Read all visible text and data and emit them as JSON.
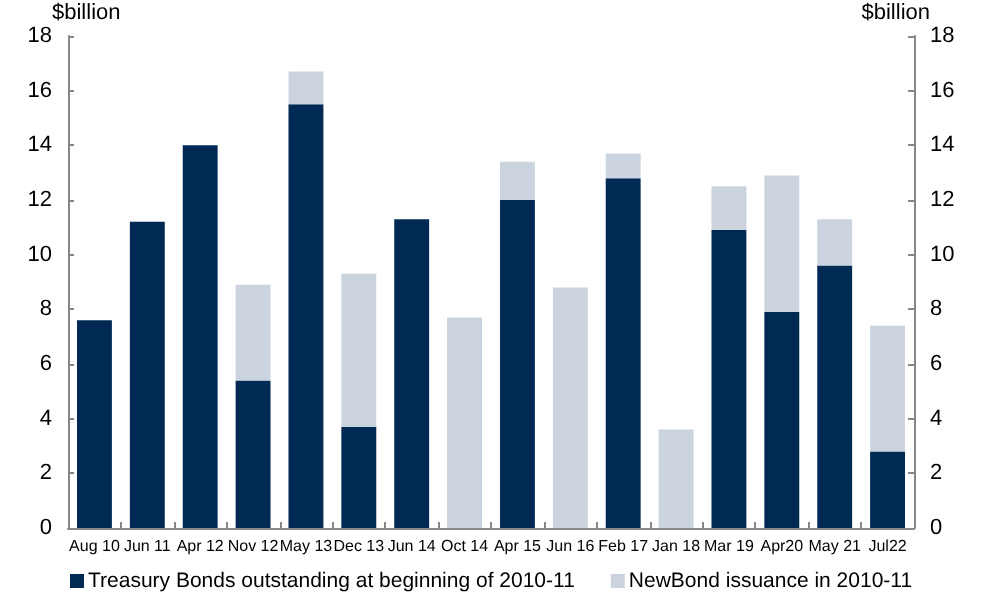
{
  "chart_data": {
    "type": "bar",
    "stacked": true,
    "ylabel": "$billion",
    "y2label": "$billion",
    "categories": [
      "Aug 10",
      "Jun 11",
      "Apr 12",
      "Nov 12",
      "May 13",
      "Dec 13",
      "Jun 14",
      "Oct 14",
      "Apr 15",
      "Jun 16",
      "Feb 17",
      "Jan 18",
      "Mar 19",
      "Apr20",
      "May 21",
      "Jul22"
    ],
    "series": [
      {
        "name": "Treasury Bonds outstanding at beginning of 2010-11",
        "color": "#002a54",
        "values": [
          7.6,
          11.2,
          14.0,
          5.4,
          15.5,
          3.7,
          11.3,
          0,
          12.0,
          0,
          12.8,
          0,
          10.9,
          7.9,
          9.6,
          2.8
        ]
      },
      {
        "name": "NewBond issuance in 2010-11",
        "color": "#cbd4de",
        "values": [
          0,
          0,
          0,
          3.5,
          1.2,
          5.6,
          0,
          7.7,
          1.4,
          8.8,
          0.9,
          3.6,
          1.6,
          5.0,
          1.7,
          4.6
        ]
      }
    ],
    "ylim": [
      0,
      18
    ],
    "yticks": [
      0,
      2,
      4,
      6,
      8,
      10,
      12,
      14,
      16,
      18
    ],
    "y2lim": [
      0,
      18
    ],
    "y2ticks": [
      0,
      2,
      4,
      6,
      8,
      10,
      12,
      14,
      16,
      18
    ],
    "grid": false,
    "legend": "bottom"
  }
}
